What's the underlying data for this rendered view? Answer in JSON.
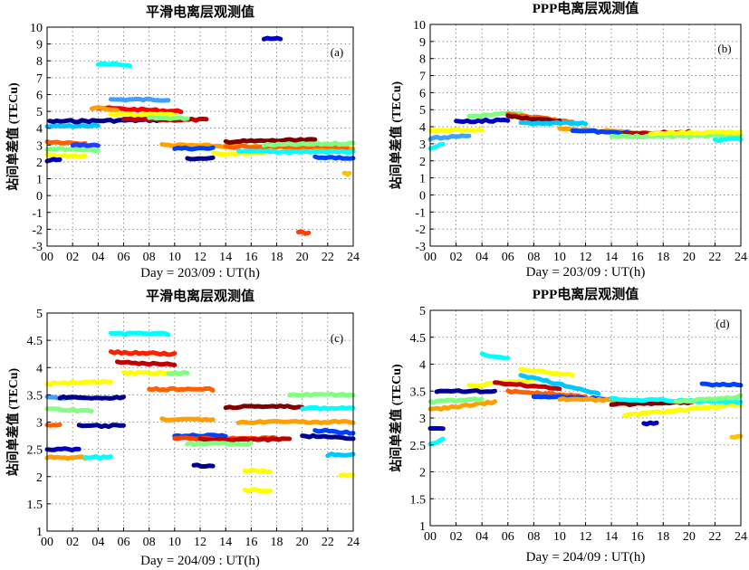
{
  "chart_data": [
    {
      "type": "scatter",
      "panel_label": "(a)",
      "title": "平滑电离层观测值",
      "xlabel": "Day = 203/09 : UT(h)",
      "ylabel": "站间单差值 (TECu)",
      "xlim": [
        0,
        24
      ],
      "ylim": [
        -3,
        10
      ],
      "xticks": [
        "00",
        "02",
        "04",
        "06",
        "08",
        "10",
        "12",
        "14",
        "16",
        "18",
        "20",
        "22",
        "24"
      ],
      "yticks": [
        "-3",
        "-2",
        "-1",
        "0",
        "1",
        "2",
        "3",
        "4",
        "5",
        "6",
        "7",
        "8",
        "9",
        "10"
      ],
      "grid": true,
      "series": [
        {
          "color": "#00c8ff",
          "x": [
            0,
            4
          ],
          "y": [
            4.1,
            4.15
          ]
        },
        {
          "color": "#000090",
          "x": [
            0.2,
            10
          ],
          "y": [
            4.4,
            4.5
          ]
        },
        {
          "color": "#00ffff",
          "x": [
            4,
            6.5
          ],
          "y": [
            7.8,
            7.75
          ]
        },
        {
          "color": "#40a0ff",
          "x": [
            5,
            9.5
          ],
          "y": [
            5.7,
            5.7
          ]
        },
        {
          "color": "#ff0000",
          "x": [
            4,
            10.5
          ],
          "y": [
            5.2,
            5.0
          ]
        },
        {
          "color": "#ffa000",
          "x": [
            3.5,
            5.5
          ],
          "y": [
            5.2,
            5.1
          ]
        },
        {
          "color": "#ffff00",
          "x": [
            5,
            10
          ],
          "y": [
            4.8,
            4.8
          ]
        },
        {
          "color": "#c00000",
          "x": [
            6,
            12.5
          ],
          "y": [
            4.5,
            4.5
          ]
        },
        {
          "color": "#80ff80",
          "x": [
            8,
            11
          ],
          "y": [
            4.6,
            4.6
          ]
        },
        {
          "color": "#ff6000",
          "x": [
            0,
            3
          ],
          "y": [
            3.2,
            3.1
          ]
        },
        {
          "color": "#80ff80",
          "x": [
            0,
            4
          ],
          "y": [
            2.8,
            2.7
          ]
        },
        {
          "color": "#ffff00",
          "x": [
            0,
            3
          ],
          "y": [
            2.4,
            2.3
          ]
        },
        {
          "color": "#0000c0",
          "x": [
            0,
            1
          ],
          "y": [
            2.1,
            2.1
          ]
        },
        {
          "color": "#2040ff",
          "x": [
            2,
            4
          ],
          "y": [
            3.0,
            3.0
          ]
        },
        {
          "color": "#ffa000",
          "x": [
            9,
            24
          ],
          "y": [
            3.0,
            2.8
          ]
        },
        {
          "color": "#0040ff",
          "x": [
            10,
            13
          ],
          "y": [
            2.8,
            2.8
          ]
        },
        {
          "color": "#000090",
          "x": [
            11,
            13
          ],
          "y": [
            2.2,
            2.2
          ]
        },
        {
          "color": "#ffff00",
          "x": [
            13,
            17
          ],
          "y": [
            2.5,
            2.5
          ]
        },
        {
          "color": "#800000",
          "x": [
            14,
            21
          ],
          "y": [
            3.2,
            3.3
          ]
        },
        {
          "color": "#ff6000",
          "x": [
            14,
            23.5
          ],
          "y": [
            2.9,
            2.9
          ]
        },
        {
          "color": "#00ffff",
          "x": [
            15,
            24
          ],
          "y": [
            2.6,
            2.6
          ]
        },
        {
          "color": "#80ff80",
          "x": [
            17,
            24
          ],
          "y": [
            3.0,
            3.1
          ]
        },
        {
          "color": "#0040ff",
          "x": [
            21,
            24
          ],
          "y": [
            2.3,
            2.2
          ]
        },
        {
          "color": "#0000c0",
          "x": [
            17,
            18.3
          ],
          "y": [
            9.3,
            9.3
          ]
        },
        {
          "color": "#ff4000",
          "x": [
            19.7,
            20.5
          ],
          "y": [
            -2.2,
            -2.2
          ]
        },
        {
          "color": "#ffc000",
          "x": [
            23.3,
            23.7
          ],
          "y": [
            1.3,
            1.3
          ]
        }
      ]
    },
    {
      "type": "scatter",
      "panel_label": "(b)",
      "title": "PPP电离层观测值",
      "xlabel": "Day = 203/09 : UT(h)",
      "ylabel": "站间单差值 (TECu)",
      "xlim": [
        0,
        24
      ],
      "ylim": [
        -3,
        10
      ],
      "xticks": [
        "00",
        "02",
        "04",
        "06",
        "08",
        "10",
        "12",
        "14",
        "16",
        "18",
        "20",
        "22",
        "24"
      ],
      "yticks": [
        "-3",
        "-2",
        "-1",
        "0",
        "1",
        "2",
        "3",
        "4",
        "5",
        "6",
        "7",
        "8",
        "9",
        "10"
      ],
      "grid": true,
      "series": [
        {
          "color": "#00ffff",
          "x": [
            0,
            1
          ],
          "y": [
            2.7,
            3.0
          ]
        },
        {
          "color": "#40a0ff",
          "x": [
            0,
            3
          ],
          "y": [
            3.3,
            3.5
          ]
        },
        {
          "color": "#ffff00",
          "x": [
            0,
            4
          ],
          "y": [
            3.8,
            3.8
          ]
        },
        {
          "color": "#0000c0",
          "x": [
            2,
            6
          ],
          "y": [
            4.3,
            4.4
          ]
        },
        {
          "color": "#80ff80",
          "x": [
            3,
            7
          ],
          "y": [
            4.6,
            4.8
          ]
        },
        {
          "color": "#ff6000",
          "x": [
            6,
            11
          ],
          "y": [
            4.7,
            4.3
          ]
        },
        {
          "color": "#800000",
          "x": [
            6,
            10
          ],
          "y": [
            4.6,
            4.3
          ]
        },
        {
          "color": "#00c8ff",
          "x": [
            7,
            12
          ],
          "y": [
            4.2,
            4.2
          ]
        },
        {
          "color": "#ffa000",
          "x": [
            10,
            17
          ],
          "y": [
            3.9,
            3.6
          ]
        },
        {
          "color": "#0040ff",
          "x": [
            11,
            18
          ],
          "y": [
            3.8,
            3.5
          ]
        },
        {
          "color": "#c00000",
          "x": [
            15,
            20
          ],
          "y": [
            3.6,
            3.7
          ]
        },
        {
          "color": "#80ff80",
          "x": [
            14,
            24
          ],
          "y": [
            3.4,
            3.5
          ]
        },
        {
          "color": "#ffff00",
          "x": [
            17,
            24
          ],
          "y": [
            3.6,
            3.7
          ]
        },
        {
          "color": "#00ffff",
          "x": [
            22,
            24
          ],
          "y": [
            3.2,
            3.3
          ]
        }
      ]
    },
    {
      "type": "scatter",
      "panel_label": "(c)",
      "title": "平滑电离层观测值",
      "xlabel": "Day = 204/09 : UT(h)",
      "ylabel": "站间单差值 (TECu)",
      "xlim": [
        0,
        24
      ],
      "ylim": [
        1,
        5
      ],
      "xticks": [
        "00",
        "02",
        "04",
        "06",
        "08",
        "10",
        "12",
        "14",
        "16",
        "18",
        "20",
        "22",
        "24"
      ],
      "yticks": [
        "1",
        "1.5",
        "2",
        "2.5",
        "3",
        "3.5",
        "4",
        "4.5",
        "5"
      ],
      "grid": true,
      "series": [
        {
          "color": "#00ffff",
          "x": [
            5,
            9.5
          ],
          "y": [
            4.62,
            4.62
          ]
        },
        {
          "color": "#ff2000",
          "x": [
            5,
            10
          ],
          "y": [
            4.28,
            4.25
          ]
        },
        {
          "color": "#c00000",
          "x": [
            5.5,
            10
          ],
          "y": [
            4.1,
            4.05
          ]
        },
        {
          "color": "#ffff00",
          "x": [
            6,
            10
          ],
          "y": [
            3.9,
            3.9
          ]
        },
        {
          "color": "#80ff80",
          "x": [
            9.5,
            11
          ],
          "y": [
            3.9,
            3.9
          ]
        },
        {
          "color": "#ffff00",
          "x": [
            0,
            5
          ],
          "y": [
            3.7,
            3.75
          ]
        },
        {
          "color": "#ff6000",
          "x": [
            8,
            13
          ],
          "y": [
            3.6,
            3.6
          ]
        },
        {
          "color": "#40a0ff",
          "x": [
            0,
            3
          ],
          "y": [
            3.45,
            3.45
          ]
        },
        {
          "color": "#000090",
          "x": [
            1,
            6
          ],
          "y": [
            3.45,
            3.45
          ]
        },
        {
          "color": "#80ff80",
          "x": [
            0,
            3.5
          ],
          "y": [
            3.25,
            3.2
          ]
        },
        {
          "color": "#ff6000",
          "x": [
            0,
            1
          ],
          "y": [
            2.95,
            2.95
          ]
        },
        {
          "color": "#000090",
          "x": [
            2.5,
            6
          ],
          "y": [
            2.93,
            2.93
          ]
        },
        {
          "color": "#ffa000",
          "x": [
            9,
            13
          ],
          "y": [
            3.05,
            3.05
          ]
        },
        {
          "color": "#0040ff",
          "x": [
            10,
            14
          ],
          "y": [
            2.75,
            2.75
          ]
        },
        {
          "color": "#ff4000",
          "x": [
            10,
            18
          ],
          "y": [
            2.7,
            2.7
          ]
        },
        {
          "color": "#c00000",
          "x": [
            12,
            19
          ],
          "y": [
            2.68,
            2.68
          ]
        },
        {
          "color": "#80ff80",
          "x": [
            11,
            16
          ],
          "y": [
            2.6,
            2.6
          ]
        },
        {
          "color": "#000090",
          "x": [
            11.5,
            13
          ],
          "y": [
            2.2,
            2.2
          ]
        },
        {
          "color": "#800000",
          "x": [
            14,
            20
          ],
          "y": [
            3.28,
            3.28
          ]
        },
        {
          "color": "#ffa000",
          "x": [
            15,
            24
          ],
          "y": [
            3.0,
            3.0
          ]
        },
        {
          "color": "#ffff00",
          "x": [
            15.5,
            17.5
          ],
          "y": [
            2.1,
            2.1
          ]
        },
        {
          "color": "#ffff00",
          "x": [
            15.5,
            17.5
          ],
          "y": [
            1.75,
            1.75
          ]
        },
        {
          "color": "#80ff80",
          "x": [
            19,
            24
          ],
          "y": [
            3.5,
            3.5
          ]
        },
        {
          "color": "#00ffff",
          "x": [
            20,
            24
          ],
          "y": [
            3.25,
            3.25
          ]
        },
        {
          "color": "#0040ff",
          "x": [
            21,
            24
          ],
          "y": [
            2.85,
            2.8
          ]
        },
        {
          "color": "#000090",
          "x": [
            20,
            24
          ],
          "y": [
            2.75,
            2.7
          ]
        },
        {
          "color": "#00c8ff",
          "x": [
            22,
            24
          ],
          "y": [
            2.4,
            2.4
          ]
        },
        {
          "color": "#0000c0",
          "x": [
            0,
            2.5
          ],
          "y": [
            2.5,
            2.5
          ]
        },
        {
          "color": "#ffa000",
          "x": [
            0,
            3
          ],
          "y": [
            2.35,
            2.35
          ]
        },
        {
          "color": "#00ffff",
          "x": [
            3,
            5
          ],
          "y": [
            2.35,
            2.35
          ]
        },
        {
          "color": "#ffff00",
          "x": [
            23,
            24
          ],
          "y": [
            2.02,
            2.02
          ]
        }
      ]
    },
    {
      "type": "scatter",
      "panel_label": "(d)",
      "title": "PPP电离层观测值",
      "xlabel": "Day = 204/09 : UT(h)",
      "ylabel": "站间单差值 (TECu)",
      "xlim": [
        0,
        24
      ],
      "ylim": [
        1,
        5
      ],
      "xticks": [
        "00",
        "02",
        "04",
        "06",
        "08",
        "10",
        "12",
        "14",
        "16",
        "18",
        "20",
        "22",
        "24"
      ],
      "yticks": [
        "1",
        "1.5",
        "2",
        "2.5",
        "3",
        "3.5",
        "4",
        "4.5",
        "5"
      ],
      "grid": true,
      "series": [
        {
          "color": "#00ffff",
          "x": [
            0,
            1
          ],
          "y": [
            2.5,
            2.6
          ]
        },
        {
          "color": "#0000c0",
          "x": [
            0,
            1
          ],
          "y": [
            2.8,
            2.8
          ]
        },
        {
          "color": "#ffa000",
          "x": [
            0,
            5
          ],
          "y": [
            3.15,
            3.3
          ]
        },
        {
          "color": "#80ff80",
          "x": [
            0,
            4
          ],
          "y": [
            3.3,
            3.35
          ]
        },
        {
          "color": "#000090",
          "x": [
            0.5,
            5
          ],
          "y": [
            3.5,
            3.5
          ]
        },
        {
          "color": "#00ffff",
          "x": [
            4,
            6
          ],
          "y": [
            4.18,
            4.1
          ]
        },
        {
          "color": "#ffff00",
          "x": [
            3,
            8
          ],
          "y": [
            3.6,
            3.7
          ]
        },
        {
          "color": "#c00000",
          "x": [
            5,
            10
          ],
          "y": [
            3.65,
            3.55
          ]
        },
        {
          "color": "#ff6000",
          "x": [
            6,
            12
          ],
          "y": [
            3.5,
            3.4
          ]
        },
        {
          "color": "#00c8ff",
          "x": [
            7,
            13
          ],
          "y": [
            3.8,
            3.45
          ]
        },
        {
          "color": "#ffff00",
          "x": [
            7,
            11
          ],
          "y": [
            3.9,
            3.8
          ]
        },
        {
          "color": "#0040ff",
          "x": [
            8,
            14
          ],
          "y": [
            3.4,
            3.35
          ]
        },
        {
          "color": "#ffa000",
          "x": [
            10,
            20
          ],
          "y": [
            3.35,
            3.3
          ]
        },
        {
          "color": "#800000",
          "x": [
            14,
            21
          ],
          "y": [
            3.25,
            3.3
          ]
        },
        {
          "color": "#ffff00",
          "x": [
            15,
            24
          ],
          "y": [
            3.05,
            3.25
          ]
        },
        {
          "color": "#00ffff",
          "x": [
            14,
            24
          ],
          "y": [
            3.35,
            3.3
          ]
        },
        {
          "color": "#0000c0",
          "x": [
            16.5,
            17.5
          ],
          "y": [
            2.9,
            2.9
          ]
        },
        {
          "color": "#0040ff",
          "x": [
            21,
            24
          ],
          "y": [
            3.62,
            3.62
          ]
        },
        {
          "color": "#80ff80",
          "x": [
            19,
            24
          ],
          "y": [
            3.3,
            3.4
          ]
        },
        {
          "color": "#ffc000",
          "x": [
            23.3,
            24
          ],
          "y": [
            2.65,
            2.65
          ]
        }
      ]
    }
  ]
}
